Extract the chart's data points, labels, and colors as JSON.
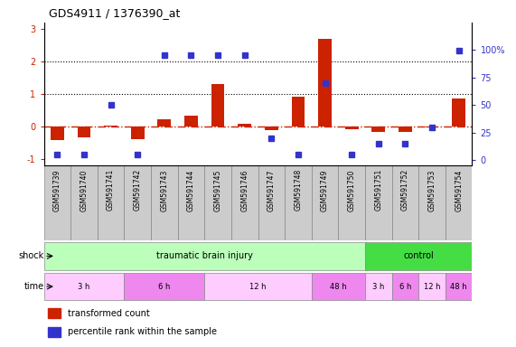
{
  "title": "GDS4911 / 1376390_at",
  "samples": [
    "GSM591739",
    "GSM591740",
    "GSM591741",
    "GSM591742",
    "GSM591743",
    "GSM591744",
    "GSM591745",
    "GSM591746",
    "GSM591747",
    "GSM591748",
    "GSM591749",
    "GSM591750",
    "GSM591751",
    "GSM591752",
    "GSM591753",
    "GSM591754"
  ],
  "transformed_count": [
    -0.42,
    -0.35,
    0.03,
    -0.38,
    0.22,
    0.32,
    1.3,
    0.07,
    -0.1,
    0.92,
    2.7,
    -0.08,
    -0.17,
    -0.17,
    -0.04,
    0.85
  ],
  "percentile_rank": [
    5,
    5,
    50,
    5,
    95,
    95,
    95,
    95,
    20,
    5,
    70,
    5,
    15,
    15,
    30,
    99
  ],
  "bar_color": "#cc2200",
  "dot_color": "#3333cc",
  "shock_groups": [
    {
      "label": "traumatic brain injury",
      "start": 0,
      "end": 12,
      "color": "#bbffbb"
    },
    {
      "label": "control",
      "start": 12,
      "end": 16,
      "color": "#44dd44"
    }
  ],
  "time_groups": [
    {
      "label": "3 h",
      "start": 0,
      "end": 3,
      "color": "#ffccff"
    },
    {
      "label": "6 h",
      "start": 3,
      "end": 6,
      "color": "#ee88ee"
    },
    {
      "label": "12 h",
      "start": 6,
      "end": 10,
      "color": "#ffccff"
    },
    {
      "label": "48 h",
      "start": 10,
      "end": 12,
      "color": "#ee88ee"
    },
    {
      "label": "3 h",
      "start": 12,
      "end": 13,
      "color": "#ffccff"
    },
    {
      "label": "6 h",
      "start": 13,
      "end": 14,
      "color": "#ee88ee"
    },
    {
      "label": "12 h",
      "start": 14,
      "end": 15,
      "color": "#ffccff"
    },
    {
      "label": "48 h",
      "start": 15,
      "end": 16,
      "color": "#ee88ee"
    }
  ],
  "ylim_left": [
    -1.2,
    3.2
  ],
  "yticks_left": [
    -1,
    0,
    1,
    2,
    3
  ],
  "ylim_right": [
    -4.8,
    124.8
  ],
  "yticks_right_vals": [
    0,
    25,
    50,
    75,
    100
  ],
  "ytick_labels_right": [
    "0",
    "25",
    "50",
    "75",
    "100%"
  ],
  "legend_items": [
    {
      "label": "transformed count",
      "color": "#cc2200"
    },
    {
      "label": "percentile rank within the sample",
      "color": "#3333cc"
    }
  ],
  "shock_label": "shock",
  "time_label": "time",
  "grid_dotted_at": [
    1,
    2
  ],
  "hline_color": "#cc2200",
  "background_color": "#ffffff",
  "sample_box_color": "#cccccc",
  "bar_width": 0.5
}
